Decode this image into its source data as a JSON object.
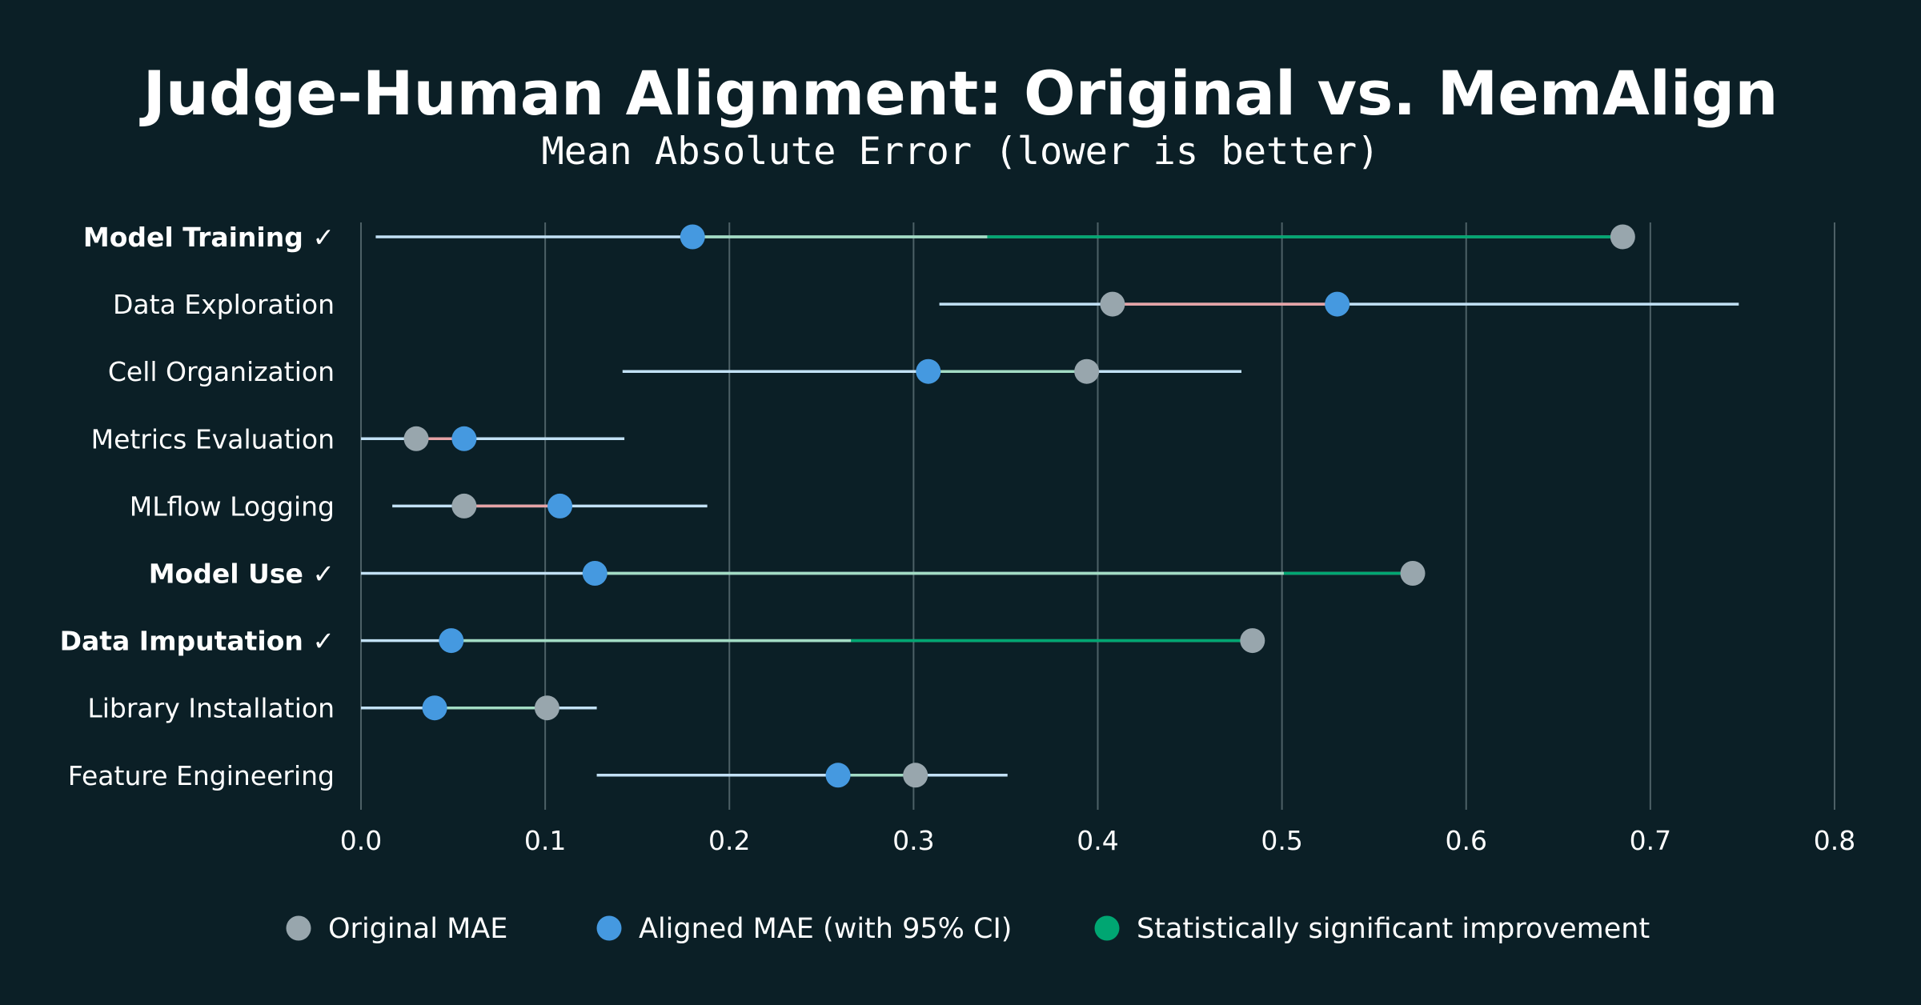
{
  "chart_data": {
    "type": "scatter",
    "title": "Judge-Human Alignment: Original vs. MemAlign",
    "subtitle": "Mean Absolute Error (lower is better)",
    "xlim": [
      0.0,
      0.8
    ],
    "xticks": [
      0.0,
      0.1,
      0.2,
      0.3,
      0.4,
      0.5,
      0.6,
      0.7,
      0.8
    ],
    "xtick_labels": [
      "0.0",
      "0.1",
      "0.2",
      "0.3",
      "0.4",
      "0.5",
      "0.6",
      "0.7",
      "0.8"
    ],
    "grid": "vertical",
    "legend_position": "bottom",
    "categories": [
      {
        "label": "Model Training ✓",
        "significant": true,
        "original": 0.685,
        "aligned": 0.18,
        "ci": [
          0.008,
          0.34
        ]
      },
      {
        "label": "Data Exploration",
        "significant": false,
        "original": 0.408,
        "aligned": 0.53,
        "ci": [
          0.314,
          0.748
        ]
      },
      {
        "label": "Cell Organization",
        "significant": false,
        "original": 0.394,
        "aligned": 0.308,
        "ci": [
          0.142,
          0.478
        ]
      },
      {
        "label": "Metrics Evaluation",
        "significant": false,
        "original": 0.03,
        "aligned": 0.056,
        "ci": [
          0.0,
          0.143
        ]
      },
      {
        "label": "MLflow Logging",
        "significant": false,
        "original": 0.056,
        "aligned": 0.108,
        "ci": [
          0.017,
          0.188
        ]
      },
      {
        "label": "Model Use ✓",
        "significant": true,
        "original": 0.571,
        "aligned": 0.127,
        "ci": [
          0.0,
          0.501
        ]
      },
      {
        "label": "Data Imputation ✓",
        "significant": true,
        "original": 0.484,
        "aligned": 0.049,
        "ci": [
          0.0,
          0.266
        ]
      },
      {
        "label": "Library Installation",
        "significant": false,
        "original": 0.101,
        "aligned": 0.04,
        "ci": [
          0.0,
          0.128
        ]
      },
      {
        "label": "Feature Engineering",
        "significant": false,
        "original": 0.301,
        "aligned": 0.259,
        "ci": [
          0.128,
          0.351
        ]
      }
    ],
    "legend": [
      {
        "key": "original",
        "label": "Original MAE",
        "color": "#98a6ad"
      },
      {
        "key": "aligned",
        "label": "Aligned MAE (with 95% CI)",
        "color": "#4599e0"
      },
      {
        "key": "significant",
        "label": "Statistically significant improvement",
        "color": "#00a672"
      }
    ],
    "colors": {
      "background": "#0b1f26",
      "ci_line": "#c2e1f5",
      "improvement_line": "#a3dcc4",
      "worse_line": "#e6a3a6",
      "significant_line": "#00a672",
      "original_dot": "#98a6ad",
      "aligned_dot": "#4599e0"
    }
  }
}
